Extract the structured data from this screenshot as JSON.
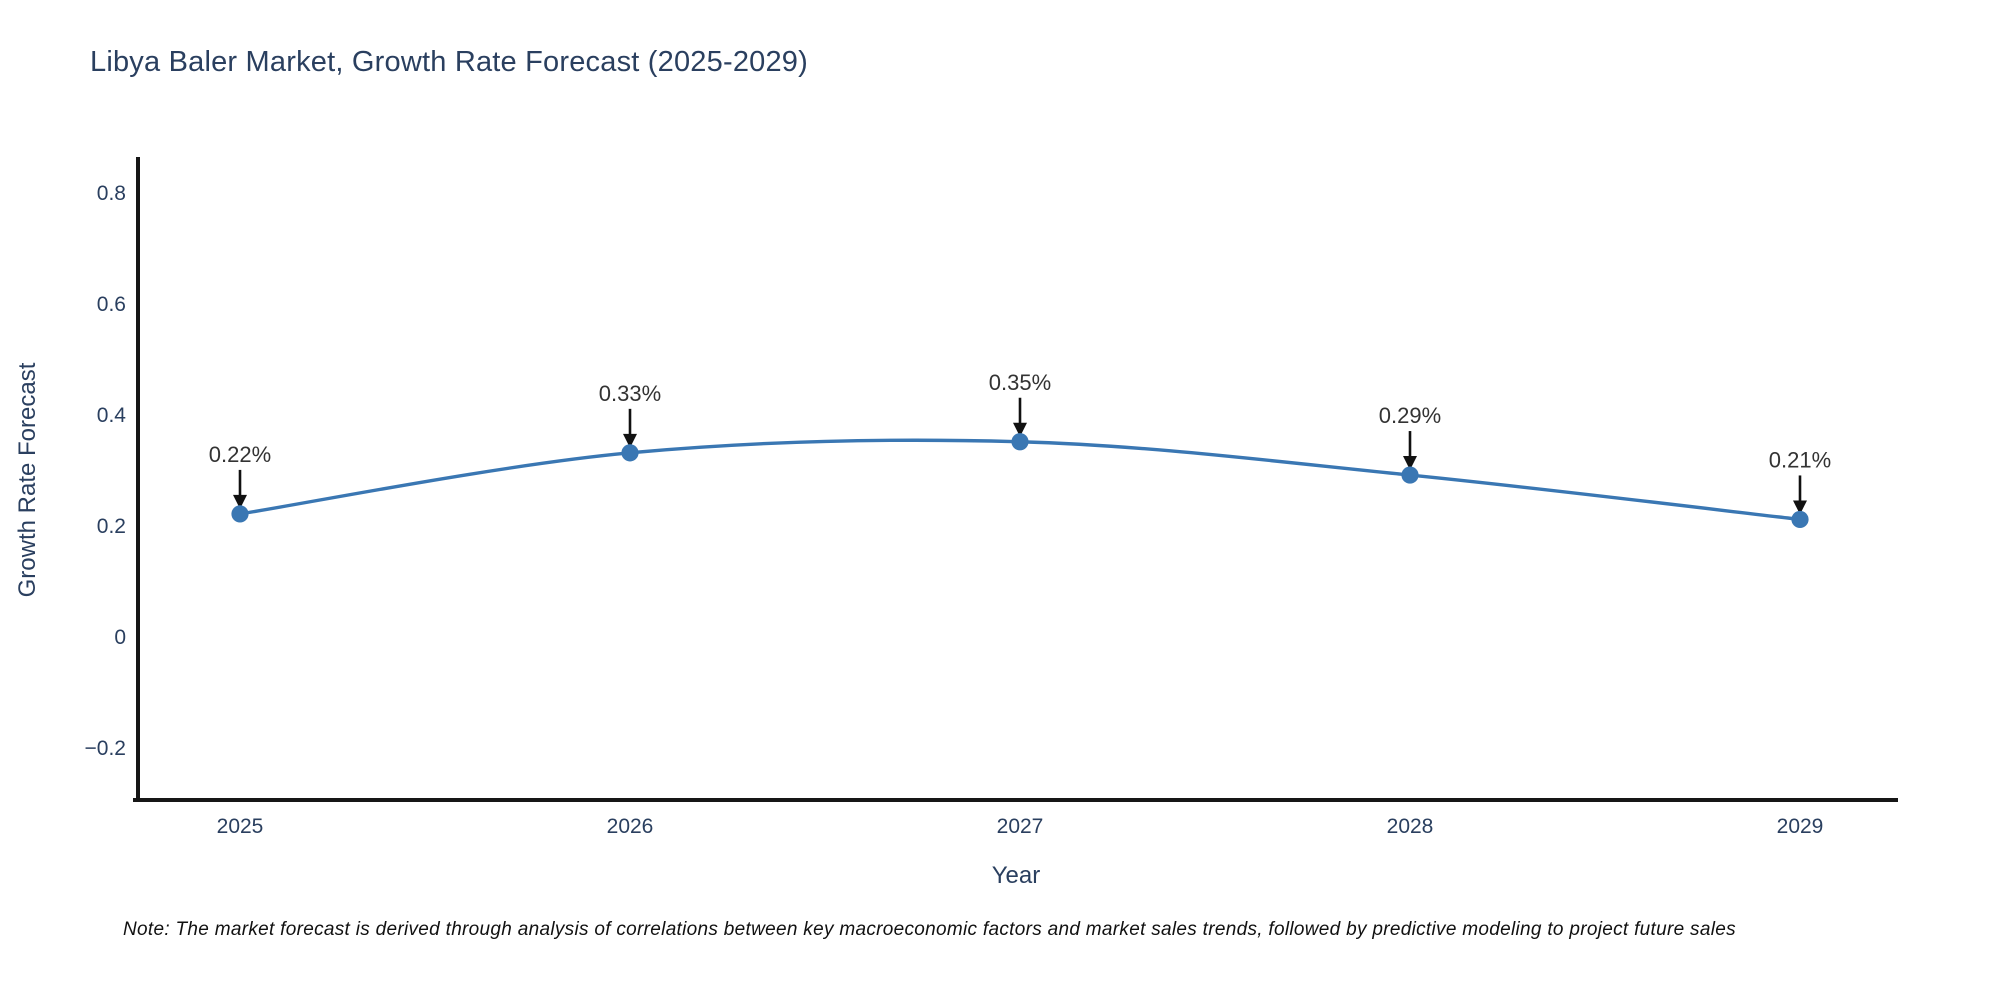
{
  "title": "Libya Baler Market, Growth Rate Forecast (2025-2029)",
  "x_axis": {
    "label": "Year",
    "tick_labels": [
      "2025",
      "2026",
      "2027",
      "2028",
      "2029"
    ]
  },
  "y_axis": {
    "label": "Growth Rate Forecast",
    "ticks": [
      {
        "value": 0.8,
        "label": "0.8"
      },
      {
        "value": 0.6,
        "label": "0.6"
      },
      {
        "value": 0.4,
        "label": "0.4"
      },
      {
        "value": 0.2,
        "label": "0.2"
      },
      {
        "value": 0,
        "label": "0"
      },
      {
        "value": -0.2,
        "label": "−0.2"
      }
    ]
  },
  "note": {
    "text": "Note: The market forecast is derived through analysis of correlations between key macroeconomic factors and market sales trends, followed by predictive modeling to project future sales"
  },
  "colors": {
    "line": "#3A77B3",
    "marker": "#3A77B3",
    "axis": "#161616",
    "slate_text": "#2A3F5F",
    "annotation_text": "#333333",
    "arrow": "#111111",
    "note_text": "#111111",
    "background": "#FFFFFF"
  },
  "chart_data": {
    "type": "line",
    "title": "Libya Baler Market, Growth Rate Forecast (2025-2029)",
    "xlabel": "Year",
    "ylabel": "Growth Rate Forecast",
    "x": [
      2025,
      2026,
      2027,
      2028,
      2029
    ],
    "series": [
      {
        "name": "Growth Rate Forecast",
        "values": [
          0.22,
          0.33,
          0.35,
          0.29,
          0.21
        ],
        "unit": "%",
        "point_labels": [
          "0.22%",
          "0.33%",
          "0.35%",
          "0.29%",
          "0.21%"
        ]
      }
    ],
    "line_shape": "spline",
    "markers": true,
    "grid": false,
    "legend": "none",
    "ylim": [
      -0.29,
      0.86
    ],
    "yticks": [
      -0.2,
      0,
      0.2,
      0.4,
      0.6,
      0.8
    ]
  }
}
